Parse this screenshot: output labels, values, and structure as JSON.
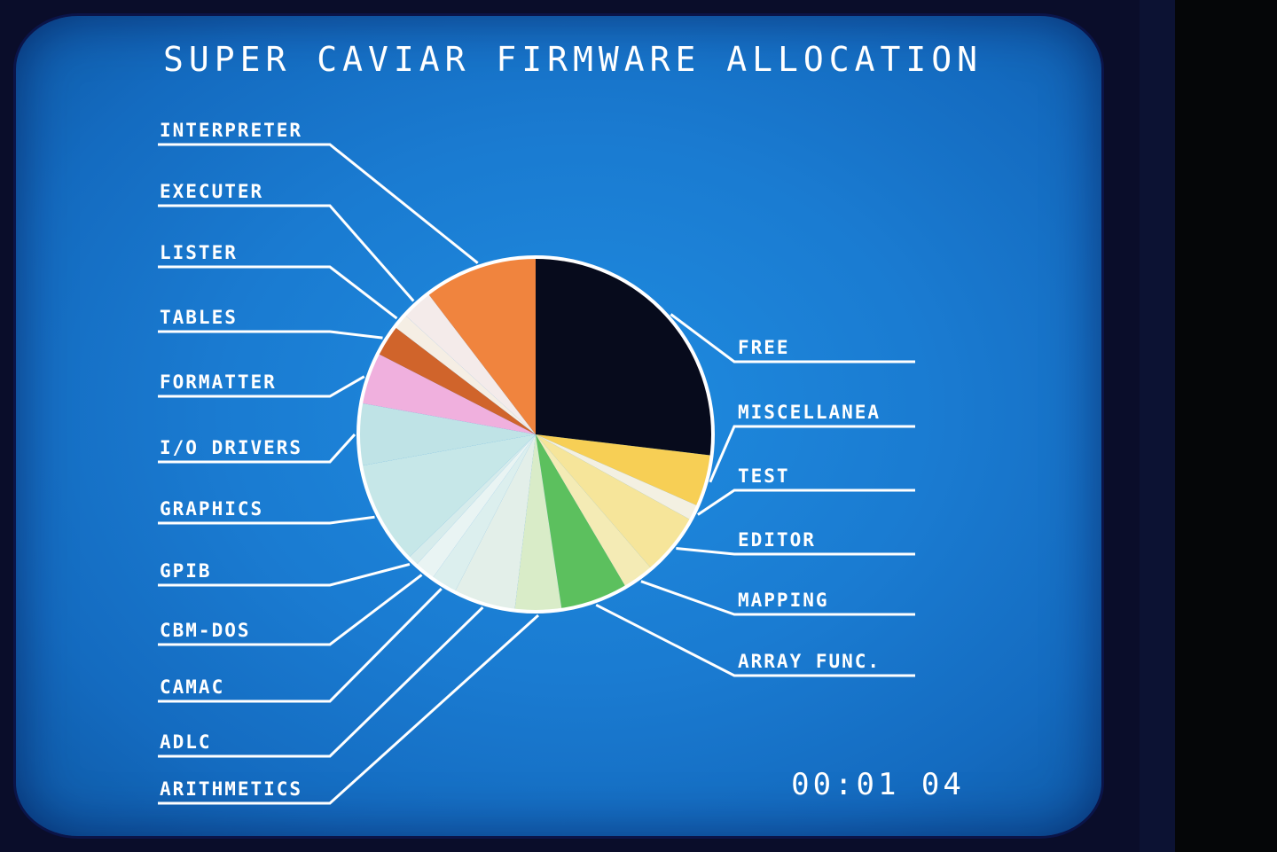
{
  "chart_data": {
    "type": "pie",
    "title": "SUPER CAVIAR FIRMWARE ALLOCATION",
    "categories": [
      "FREE",
      "MISCELLANEA",
      "TEST",
      "EDITOR",
      "MAPPING",
      "ARRAY FUNC.",
      "ARITHMETICS",
      "ADLC",
      "CAMAC",
      "CBM-DOS",
      "GPIB",
      "GRAPHICS",
      "I/O DRIVERS",
      "FORMATTER",
      "TABLES",
      "LISTER",
      "EXECUTER",
      "INTERPRETER"
    ],
    "values": [
      28.5,
      5,
      1.5,
      6,
      3,
      6.5,
      4.5,
      6,
      2.5,
      2,
      1,
      10,
      6,
      5,
      3,
      1.5,
      3,
      11
    ],
    "colors": [
      "#070b1c",
      "#f7cf55",
      "#f3f0e2",
      "#f6e59a",
      "#f4ebb5",
      "#5cc05e",
      "#d9ecc8",
      "#e3efe9",
      "#dcefee",
      "#e9f4f3",
      "#d7ecec",
      "#c6e7e8",
      "#bfe3e6",
      "#f0b0de",
      "#d0642b",
      "#f5eee4",
      "#f4ebea",
      "#f0843e"
    ],
    "start_angle_deg": 0,
    "direction": "clockwise"
  },
  "timer": "00:01 04"
}
